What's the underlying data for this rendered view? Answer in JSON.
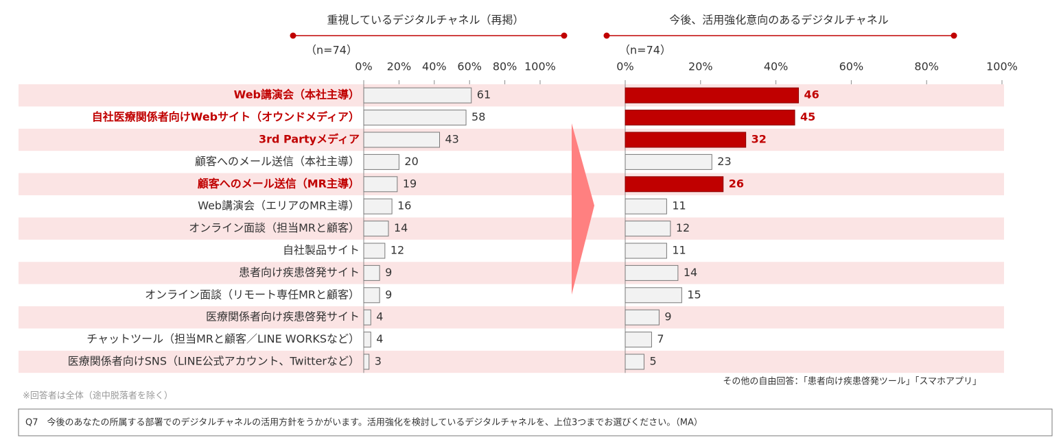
{
  "chart_data": [
    {
      "type": "bar",
      "orientation": "horizontal",
      "title": "重視しているデジタルチャネル（再掲）",
      "sample_size": "（n=74）",
      "categories": [
        "Web講演会（本社主導）",
        "自社医療関係者向けWebサイト（オウンドメディア）",
        "3rd Partyメディア",
        "顧客へのメール送信（本社主導）",
        "顧客へのメール送信（MR主導）",
        "Web講演会（エリアのMR主導）",
        "オンライン面談（担当MRと顧客）",
        "自社製品サイト",
        "患者向け疾患啓発サイト",
        "オンライン面談（リモート専任MRと顧客）",
        "医療関係者向け疾患啓発サイト",
        "チャットツール（担当MRと顧客／LINE WORKSなど）",
        "医療関係者向けSNS（LINE公式アカウント、Twitterなど）"
      ],
      "values": [
        61,
        58,
        43,
        20,
        19,
        16,
        14,
        12,
        9,
        9,
        4,
        4,
        3
      ],
      "highlight": [
        0,
        1,
        2,
        4
      ],
      "color": "#f2f2f2",
      "highlight_color": "#c00000",
      "xlim": [
        0,
        100
      ],
      "xticks": [
        {
          "value": 0,
          "label": "0%"
        },
        {
          "value": 20,
          "label": "20%"
        },
        {
          "value": 40,
          "label": "40%"
        },
        {
          "value": 60,
          "label": "60%"
        },
        {
          "value": 80,
          "label": "80%"
        },
        {
          "value": 100,
          "label": "100%"
        }
      ]
    },
    {
      "type": "bar",
      "orientation": "horizontal",
      "title": "今後、活用強化意向のあるデジタルチャネル",
      "sample_size": "（n=74）",
      "values": [
        46,
        45,
        32,
        23,
        26,
        11,
        12,
        11,
        14,
        15,
        9,
        7,
        5
      ],
      "highlight": [
        0,
        1,
        2,
        4
      ],
      "color": "#f2f2f2",
      "highlight_color": "#c00000",
      "xlim": [
        0,
        100
      ],
      "xticks": [
        {
          "value": 0,
          "label": "0%"
        },
        {
          "value": 20,
          "label": "20%"
        },
        {
          "value": 40,
          "label": "40%"
        },
        {
          "value": 60,
          "label": "60%"
        },
        {
          "value": 80,
          "label": "80%"
        },
        {
          "value": 100,
          "label": "100%"
        }
      ]
    }
  ],
  "notes": {
    "other_answers": "その他の自由回答：「患者向け疾患啓発ツール」「スマホアプリ」",
    "respondents": "※回答者は全体（途中脱落者を除く）",
    "question": "Q7　今後のあなたの所属する部署でのデジタルチャネルの活用方針をうかがいます。活用強化を検討しているデジタルチャネルを、上位3つまでお選びください。（MA）"
  }
}
